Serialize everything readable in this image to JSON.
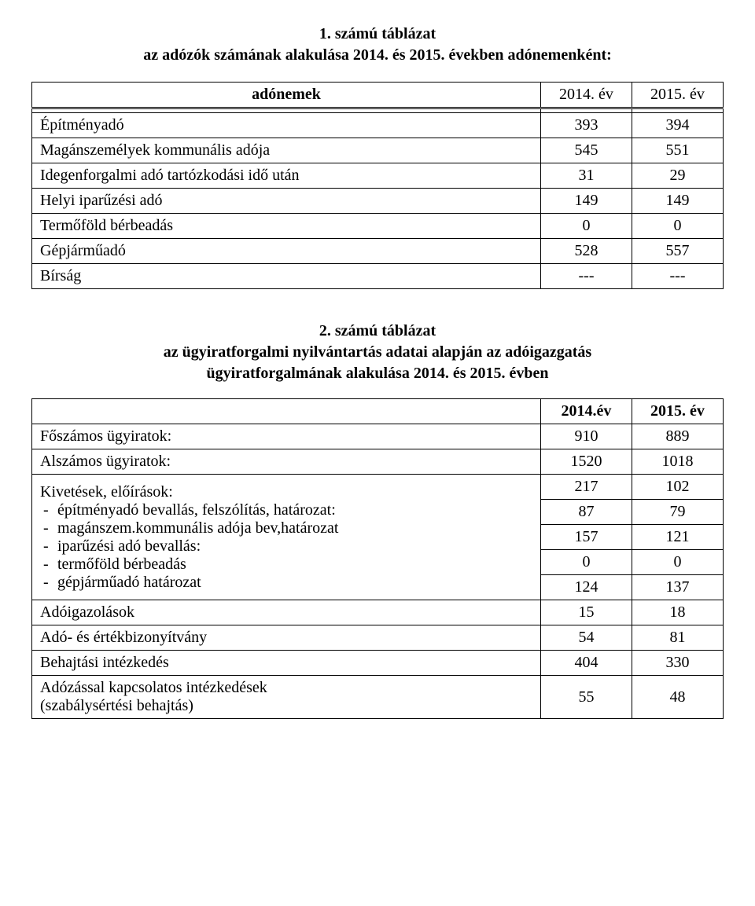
{
  "title1": {
    "line1": "1.  számú táblázat",
    "line2": "az adózók számának alakulása 2014. és 2015. években adónemenként:"
  },
  "table1": {
    "header": {
      "label": "adónemek",
      "col1": "2014. év",
      "col2": "2015. év"
    },
    "rows": [
      {
        "label": "Építményadó",
        "c1": "393",
        "c2": "394"
      },
      {
        "label": "Magánszemélyek kommunális adója",
        "c1": "545",
        "c2": "551"
      },
      {
        "label": "Idegenforgalmi adó tartózkodási idő után",
        "c1": "31",
        "c2": "29"
      },
      {
        "label": "Helyi iparűzési adó",
        "c1": "149",
        "c2": "149"
      },
      {
        "label": "Termőföld bérbeadás",
        "c1": "0",
        "c2": "0"
      },
      {
        "label": "Gépjárműadó",
        "c1": "528",
        "c2": "557"
      },
      {
        "label": "Bírság",
        "c1": "---",
        "c2": "---"
      }
    ]
  },
  "title2": {
    "line1": "2.  számú táblázat",
    "line2": "az ügyiratforgalmi nyilvántartás adatai alapján az adóigazgatás",
    "line3": "ügyiratforgalmának alakulása 2014. és 2015. évben"
  },
  "table2": {
    "header": {
      "col1": "2014.év",
      "col2": "2015. év"
    },
    "rows": [
      {
        "label": "Főszámos ügyiratok:",
        "c1": "910",
        "c2": "889"
      },
      {
        "label": "Alszámos ügyiratok:",
        "c1": "1520",
        "c2": "1018"
      }
    ],
    "kivet": {
      "heading": "Kivetések, előírások:",
      "items": [
        "építményadó bevallás, felszólítás, határozat:",
        "magánszem.kommunális adója bev,határozat",
        "iparűzési adó bevallás:",
        "termőföld bérbeadás",
        "gépjárműadó határozat"
      ],
      "values": [
        {
          "c1": "217",
          "c2": "102"
        },
        {
          "c1": "87",
          "c2": "79"
        },
        {
          "c1": "157",
          "c2": "121"
        },
        {
          "c1": "0",
          "c2": "0"
        },
        {
          "c1": "124",
          "c2": "137"
        }
      ]
    },
    "tail": [
      {
        "label": "Adóigazolások",
        "c1": "15",
        "c2": "18"
      },
      {
        "label": "Adó- és értékbizonyítvány",
        "c1": "54",
        "c2": "81"
      },
      {
        "label": "Behajtási intézkedés",
        "c1": "404",
        "c2": "330"
      },
      {
        "label": "Adózással kapcsolatos intézkedések\n(szabálysértési behajtás)",
        "c1": "55",
        "c2": "48"
      }
    ]
  }
}
